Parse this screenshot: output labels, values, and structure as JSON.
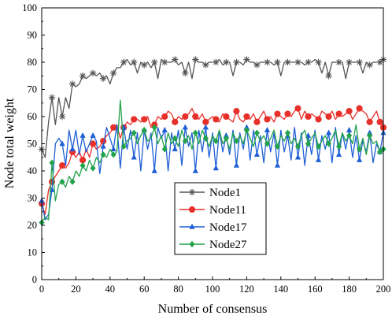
{
  "chart_data": {
    "type": "line",
    "xlabel": "Number of consensus",
    "ylabel": "Node total weight",
    "xlim": [
      0,
      200
    ],
    "ylim": [
      0,
      100
    ],
    "xticks": [
      0,
      20,
      40,
      60,
      80,
      100,
      120,
      140,
      160,
      180,
      200
    ],
    "yticks": [
      0,
      10,
      20,
      30,
      40,
      50,
      60,
      70,
      80,
      90,
      100
    ],
    "grid": false,
    "legend_position": "lower-left-center",
    "series": [
      {
        "name": "Node1",
        "color": "#555555",
        "marker": "asterisk",
        "x": [
          0,
          2,
          4,
          6,
          8,
          10,
          12,
          14,
          16,
          18,
          20,
          22,
          24,
          26,
          28,
          30,
          32,
          34,
          36,
          38,
          40,
          42,
          44,
          46,
          48,
          50,
          52,
          54,
          56,
          58,
          60,
          62,
          64,
          66,
          68,
          70,
          72,
          74,
          76,
          78,
          80,
          82,
          84,
          86,
          88,
          90,
          92,
          94,
          96,
          98,
          100,
          102,
          104,
          106,
          108,
          110,
          112,
          114,
          116,
          118,
          120,
          122,
          124,
          126,
          128,
          130,
          132,
          134,
          136,
          138,
          140,
          142,
          144,
          146,
          148,
          150,
          152,
          154,
          156,
          158,
          160,
          162,
          164,
          166,
          168,
          170,
          172,
          174,
          176,
          178,
          180,
          182,
          184,
          186,
          188,
          190,
          192,
          194,
          196,
          198,
          200
        ],
        "values": [
          48,
          45,
          58,
          67,
          57,
          67,
          60,
          67,
          63,
          72,
          71,
          72,
          75,
          74,
          75,
          76,
          75,
          76,
          74,
          75,
          72,
          76,
          78,
          78,
          80,
          81,
          79,
          80,
          76,
          80,
          79,
          80,
          78,
          80,
          74,
          81,
          80,
          80,
          80,
          81,
          79,
          80,
          76,
          80,
          74,
          81,
          80,
          80,
          79,
          80,
          80,
          80,
          81,
          79,
          80,
          80,
          75,
          80,
          80,
          79,
          81,
          80,
          80,
          79,
          80,
          80,
          80,
          80,
          79,
          80,
          75,
          80,
          80,
          80,
          80,
          80,
          80,
          79,
          80,
          80,
          81,
          80,
          76,
          80,
          75,
          80,
          80,
          80,
          80,
          74,
          80,
          80,
          80,
          80,
          76,
          80,
          79,
          80,
          80,
          80,
          81
        ]
      },
      {
        "name": "Node11",
        "color": "#e8302a",
        "marker": "circle",
        "x": [
          0,
          2,
          4,
          6,
          8,
          10,
          12,
          14,
          16,
          18,
          20,
          22,
          24,
          26,
          28,
          30,
          32,
          34,
          36,
          38,
          40,
          42,
          44,
          46,
          48,
          50,
          52,
          54,
          56,
          58,
          60,
          62,
          64,
          66,
          68,
          70,
          72,
          74,
          76,
          78,
          80,
          82,
          84,
          86,
          88,
          90,
          92,
          94,
          96,
          98,
          100,
          102,
          104,
          106,
          108,
          110,
          112,
          114,
          116,
          118,
          120,
          122,
          124,
          126,
          128,
          130,
          132,
          134,
          136,
          138,
          140,
          142,
          144,
          146,
          148,
          150,
          152,
          154,
          156,
          158,
          160,
          162,
          164,
          166,
          168,
          170,
          172,
          174,
          176,
          178,
          180,
          182,
          184,
          186,
          188,
          190,
          192,
          194,
          196,
          198,
          200
        ],
        "values": [
          28,
          24,
          33,
          36,
          38,
          40,
          42,
          41,
          43,
          47,
          45,
          47,
          44,
          48,
          45,
          50,
          48,
          49,
          51,
          53,
          54,
          56,
          57,
          52,
          56,
          58,
          57,
          59,
          59,
          58,
          59,
          60,
          56,
          57,
          60,
          59,
          60,
          62,
          61,
          58,
          60,
          59,
          60,
          61,
          63,
          60,
          59,
          61,
          58,
          59,
          60,
          59,
          58,
          61,
          60,
          59,
          58,
          62,
          59,
          58,
          60,
          59,
          61,
          58,
          60,
          62,
          59,
          60,
          58,
          61,
          60,
          59,
          61,
          60,
          62,
          63,
          59,
          62,
          60,
          61,
          60,
          59,
          62,
          61,
          60,
          62,
          59,
          61,
          60,
          61,
          62,
          59,
          61,
          63,
          62,
          61,
          58,
          60,
          62,
          58,
          56
        ]
      },
      {
        "name": "Node17",
        "color": "#1f5fd6",
        "marker": "triangle",
        "x": [
          0,
          2,
          4,
          6,
          8,
          10,
          12,
          14,
          16,
          18,
          20,
          22,
          24,
          26,
          28,
          30,
          32,
          34,
          36,
          38,
          40,
          42,
          44,
          46,
          48,
          50,
          52,
          54,
          56,
          58,
          60,
          62,
          64,
          66,
          68,
          70,
          72,
          74,
          76,
          78,
          80,
          82,
          84,
          86,
          88,
          90,
          92,
          94,
          96,
          98,
          100,
          102,
          104,
          106,
          108,
          110,
          112,
          114,
          116,
          118,
          120,
          122,
          124,
          126,
          128,
          130,
          132,
          134,
          136,
          138,
          140,
          142,
          144,
          146,
          148,
          150,
          152,
          154,
          156,
          158,
          160,
          162,
          164,
          166,
          168,
          170,
          172,
          174,
          176,
          178,
          180,
          182,
          184,
          186,
          188,
          190,
          192,
          194,
          196,
          198,
          200
        ],
        "values": [
          29,
          22,
          24,
          33,
          50,
          52,
          50,
          42,
          55,
          48,
          55,
          46,
          53,
          47,
          50,
          53,
          51,
          39,
          49,
          56,
          52,
          48,
          57,
          41,
          56,
          48,
          55,
          45,
          54,
          40,
          55,
          48,
          54,
          40,
          56,
          52,
          55,
          40,
          54,
          48,
          55,
          42,
          56,
          49,
          54,
          40,
          55,
          47,
          56,
          45,
          54,
          41,
          55,
          47,
          53,
          46,
          55,
          42,
          54,
          48,
          56,
          44,
          55,
          46,
          53,
          43,
          55,
          47,
          54,
          42,
          55,
          47,
          53,
          44,
          56,
          45,
          54,
          42,
          53,
          46,
          55,
          44,
          53,
          48,
          54,
          43,
          56,
          46,
          54,
          48,
          55,
          45,
          53,
          44,
          51,
          47,
          54,
          43,
          50,
          47,
          54
        ]
      },
      {
        "name": "Node27",
        "color": "#22a34a",
        "marker": "diamond",
        "x": [
          0,
          2,
          4,
          6,
          8,
          10,
          12,
          14,
          16,
          18,
          20,
          22,
          24,
          26,
          28,
          30,
          32,
          34,
          36,
          38,
          40,
          42,
          44,
          46,
          48,
          50,
          52,
          54,
          56,
          58,
          60,
          62,
          64,
          66,
          68,
          70,
          72,
          74,
          76,
          78,
          80,
          82,
          84,
          86,
          88,
          90,
          92,
          94,
          96,
          98,
          100,
          102,
          104,
          106,
          108,
          110,
          112,
          114,
          116,
          118,
          120,
          122,
          124,
          126,
          128,
          130,
          132,
          134,
          136,
          138,
          140,
          142,
          144,
          146,
          148,
          150,
          152,
          154,
          156,
          158,
          160,
          162,
          164,
          166,
          168,
          170,
          172,
          174,
          176,
          178,
          180,
          182,
          184,
          186,
          188,
          190,
          192,
          194,
          196,
          198,
          200
        ],
        "values": [
          21,
          23,
          22,
          43,
          29,
          35,
          36,
          34,
          38,
          36,
          40,
          38,
          42,
          40,
          44,
          41,
          45,
          43,
          46,
          45,
          48,
          46,
          47,
          66,
          49,
          51,
          52,
          54,
          50,
          53,
          55,
          51,
          52,
          56,
          50,
          53,
          48,
          54,
          50,
          52,
          49,
          55,
          51,
          53,
          48,
          54,
          50,
          55,
          52,
          49,
          53,
          51,
          55,
          50,
          52,
          48,
          54,
          51,
          53,
          50,
          55,
          52,
          49,
          54,
          51,
          53,
          50,
          52,
          55,
          49,
          53,
          51,
          54,
          50,
          52,
          49,
          53,
          55,
          50,
          52,
          54,
          49,
          51,
          53,
          50,
          52,
          55,
          49,
          54,
          51,
          53,
          50,
          57,
          48,
          52,
          46,
          53,
          50,
          51,
          47,
          48
        ]
      }
    ]
  }
}
